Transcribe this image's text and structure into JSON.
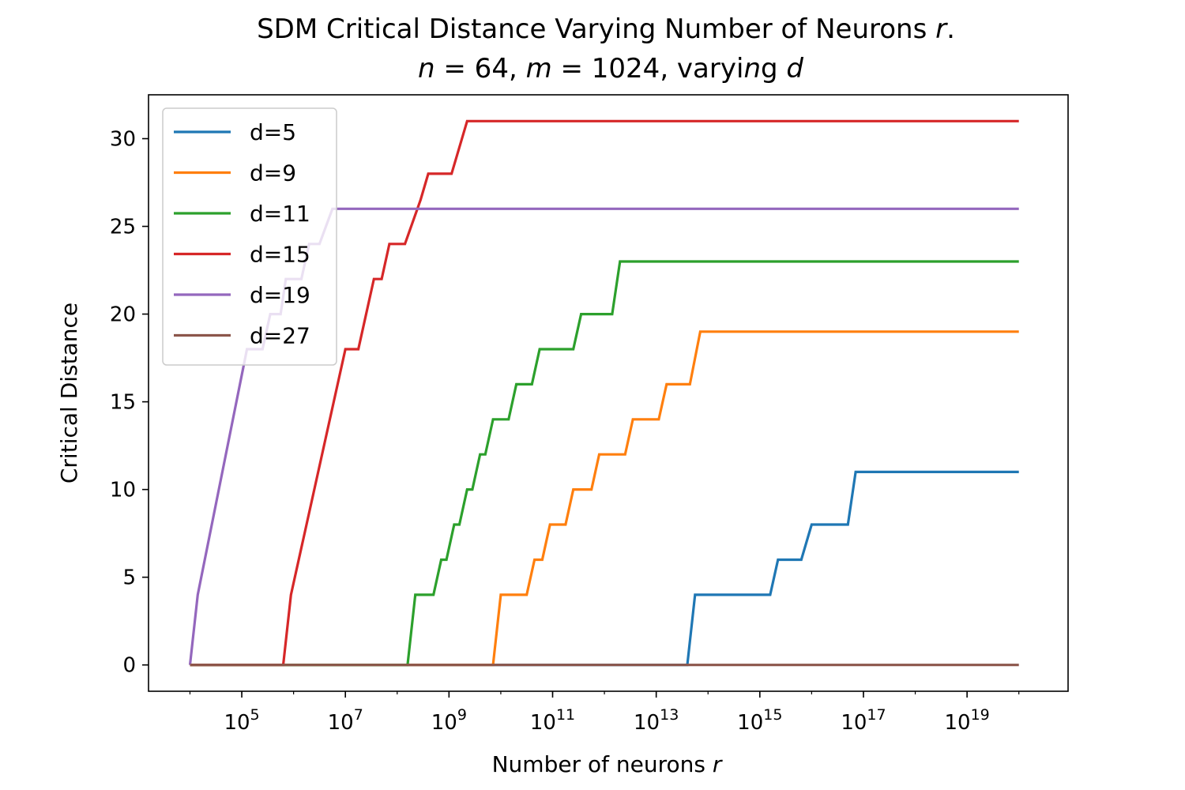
{
  "chart_data": {
    "type": "line",
    "title": "SDM Critical Distance Varying Number of Neurons r.",
    "subtitle": "n = 64, m = 1024, varying d",
    "xlabel": "Number of neurons r",
    "ylabel": "Critical Distance",
    "xscale": "log",
    "xlim_log10": [
      3.2,
      20.95
    ],
    "ylim": [
      -1.5,
      32.5
    ],
    "yticks": [
      0,
      5,
      10,
      15,
      20,
      25,
      30
    ],
    "xticks": [
      {
        "base": "10",
        "exp": "5",
        "log10": 5
      },
      {
        "base": "10",
        "exp": "7",
        "log10": 7
      },
      {
        "base": "10",
        "exp": "9",
        "log10": 9
      },
      {
        "base": "10",
        "exp": "11",
        "log10": 11
      },
      {
        "base": "10",
        "exp": "13",
        "log10": 13
      },
      {
        "base": "10",
        "exp": "15",
        "log10": 15
      },
      {
        "base": "10",
        "exp": "17",
        "log10": 17
      },
      {
        "base": "10",
        "exp": "19",
        "log10": 19
      }
    ],
    "legend_position": "upper-left",
    "series": [
      {
        "name": "d=5",
        "color": "#1f77b4",
        "points": [
          [
            4.0,
            0
          ],
          [
            13.6,
            0
          ],
          [
            13.75,
            4
          ],
          [
            14.6,
            4
          ],
          [
            15.2,
            4
          ],
          [
            15.35,
            6
          ],
          [
            15.8,
            6
          ],
          [
            16.0,
            8
          ],
          [
            16.5,
            8
          ],
          [
            16.7,
            8
          ],
          [
            16.85,
            11
          ],
          [
            20.0,
            11
          ]
        ]
      },
      {
        "name": "d=9",
        "color": "#ff7f0e",
        "points": [
          [
            4.0,
            0
          ],
          [
            9.85,
            0
          ],
          [
            10.0,
            4
          ],
          [
            10.5,
            4
          ],
          [
            10.65,
            6
          ],
          [
            10.8,
            6
          ],
          [
            10.95,
            8
          ],
          [
            11.25,
            8
          ],
          [
            11.4,
            10
          ],
          [
            11.75,
            10
          ],
          [
            11.9,
            12
          ],
          [
            12.4,
            12
          ],
          [
            12.55,
            14
          ],
          [
            13.05,
            14
          ],
          [
            13.2,
            16
          ],
          [
            13.65,
            16
          ],
          [
            13.85,
            19
          ],
          [
            20.0,
            19
          ]
        ]
      },
      {
        "name": "d=11",
        "color": "#2ca02c",
        "points": [
          [
            4.0,
            0
          ],
          [
            8.2,
            0
          ],
          [
            8.35,
            4
          ],
          [
            8.7,
            4
          ],
          [
            8.85,
            6
          ],
          [
            8.95,
            6
          ],
          [
            9.1,
            8
          ],
          [
            9.2,
            8
          ],
          [
            9.35,
            10
          ],
          [
            9.45,
            10
          ],
          [
            9.6,
            12
          ],
          [
            9.7,
            12
          ],
          [
            9.85,
            14
          ],
          [
            10.15,
            14
          ],
          [
            10.3,
            16
          ],
          [
            10.6,
            16
          ],
          [
            10.75,
            18
          ],
          [
            11.4,
            18
          ],
          [
            11.55,
            20
          ],
          [
            12.15,
            20
          ],
          [
            12.3,
            23
          ],
          [
            20.0,
            23
          ]
        ]
      },
      {
        "name": "d=15",
        "color": "#d62728",
        "points": [
          [
            4.0,
            0
          ],
          [
            5.8,
            0
          ],
          [
            5.95,
            4
          ],
          [
            7.0,
            18
          ],
          [
            7.25,
            18
          ],
          [
            7.55,
            22
          ],
          [
            7.7,
            22
          ],
          [
            7.85,
            24
          ],
          [
            8.15,
            24
          ],
          [
            8.45,
            26.5
          ],
          [
            8.6,
            28
          ],
          [
            9.05,
            28
          ],
          [
            9.35,
            31
          ],
          [
            20.0,
            31
          ]
        ]
      },
      {
        "name": "d=19",
        "color": "#9467bd",
        "points": [
          [
            4.0,
            0
          ],
          [
            4.15,
            4
          ],
          [
            5.1,
            18
          ],
          [
            5.4,
            18
          ],
          [
            5.55,
            20
          ],
          [
            5.75,
            20
          ],
          [
            5.85,
            22
          ],
          [
            6.15,
            22
          ],
          [
            6.3,
            24
          ],
          [
            6.5,
            24
          ],
          [
            6.75,
            26
          ],
          [
            20.0,
            26
          ]
        ]
      },
      {
        "name": "d=27",
        "color": "#8c564b",
        "points": [
          [
            4.0,
            0
          ],
          [
            20.0,
            0
          ]
        ]
      }
    ]
  }
}
